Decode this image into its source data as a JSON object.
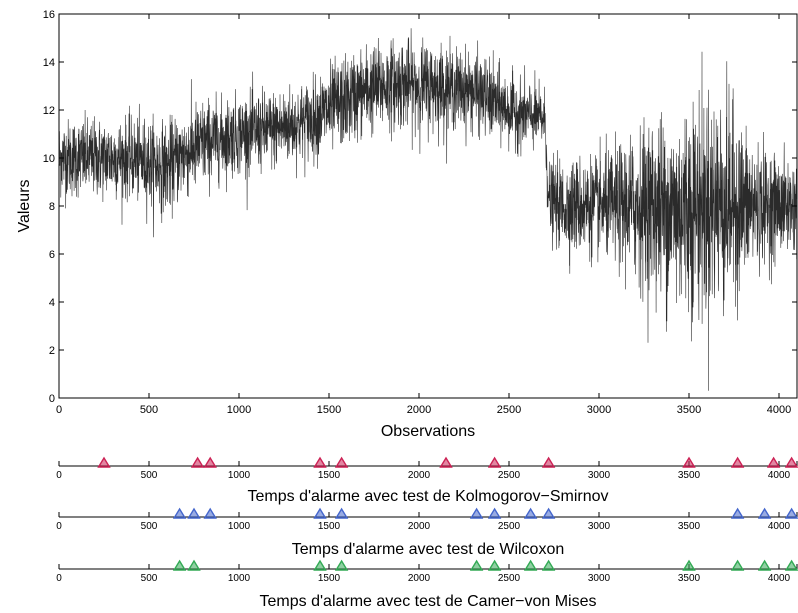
{
  "chart_data": [
    {
      "type": "line",
      "title": "",
      "xlabel": "Observations",
      "ylabel": "Valeurs",
      "xlim": [
        0,
        4100
      ],
      "ylim": [
        0,
        16
      ],
      "x_ticks": [
        0,
        500,
        1000,
        1500,
        2000,
        2500,
        3000,
        3500,
        4000
      ],
      "y_ticks": [
        0,
        2,
        4,
        6,
        8,
        10,
        12,
        14,
        16
      ],
      "grid": false,
      "line_color": "#2b2b2b",
      "series": [
        {
          "x": [
            0,
            100,
            200,
            300,
            400,
            500,
            600,
            700,
            800,
            900,
            1000,
            1100,
            1200,
            1300,
            1400,
            1500,
            1600,
            1700,
            1800,
            1900,
            2000,
            2100,
            2200,
            2300,
            2400,
            2500,
            2600,
            2700,
            2720,
            2800,
            2900,
            3000,
            3100,
            3200,
            3300,
            3400,
            3500,
            3600,
            3700,
            3800,
            3900,
            4000,
            4100
          ],
          "values": [
            10,
            10,
            10,
            10,
            10,
            9.8,
            9.6,
            10.2,
            10.6,
            10.8,
            11,
            11.1,
            11.2,
            11.4,
            11.6,
            12,
            12.4,
            12.8,
            13,
            13.1,
            13,
            13,
            12.9,
            12.8,
            12.4,
            12,
            11.8,
            11.6,
            8.2,
            8,
            8,
            8,
            8,
            8,
            8,
            7.8,
            8,
            8,
            8.2,
            8,
            8,
            8,
            8
          ],
          "spread": [
            0.8,
            0.8,
            0.8,
            0.8,
            0.8,
            0.9,
            0.9,
            0.9,
            0.9,
            0.8,
            0.8,
            0.8,
            0.8,
            0.8,
            0.8,
            0.9,
            0.9,
            0.9,
            0.9,
            0.9,
            0.9,
            0.9,
            0.8,
            0.8,
            0.8,
            0.7,
            0.7,
            0.6,
            0.8,
            0.9,
            1.0,
            1.0,
            1.2,
            1.5,
            1.8,
            2.0,
            2.2,
            2.3,
            2.2,
            1.6,
            1.2,
            1.0,
            0.9
          ]
        }
      ]
    },
    {
      "type": "scatter",
      "title": "Temps d'alarme avec test de Kolmogorov−Smirnov",
      "xlim": [
        0,
        4100
      ],
      "x_ticks": [
        0,
        500,
        1000,
        1500,
        2000,
        2500,
        3000,
        3500,
        4000
      ],
      "marker": "triangle",
      "color": "#cc2255",
      "alarms": [
        250,
        770,
        840,
        1450,
        1570,
        2150,
        2420,
        2720,
        3500,
        3770,
        3970,
        4070
      ]
    },
    {
      "type": "scatter",
      "title": "Temps d'alarme avec test de Wilcoxon",
      "xlim": [
        0,
        4100
      ],
      "x_ticks": [
        0,
        500,
        1000,
        1500,
        2000,
        2500,
        3000,
        3500,
        4000
      ],
      "marker": "triangle",
      "color": "#4466cc",
      "alarms": [
        670,
        750,
        840,
        1450,
        1570,
        2320,
        2420,
        2620,
        2720,
        3770,
        3920,
        4070
      ]
    },
    {
      "type": "scatter",
      "title": "Temps d'alarme avec test de Camer−von Mises",
      "xlim": [
        0,
        4100
      ],
      "x_ticks": [
        0,
        500,
        1000,
        1500,
        2000,
        2500,
        3000,
        3500,
        4000
      ],
      "marker": "triangle",
      "color": "#33aa55",
      "alarms": [
        670,
        750,
        1450,
        1570,
        2320,
        2420,
        2620,
        2720,
        3500,
        3770,
        3920,
        4070
      ]
    }
  ]
}
